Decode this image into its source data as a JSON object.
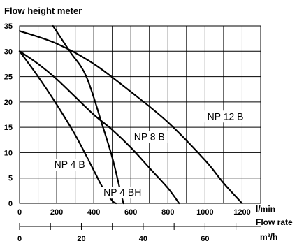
{
  "chart_data": {
    "type": "line",
    "title": "Flow height meter",
    "ylabel": "",
    "xlabel": "",
    "x_unit_label": "l/min",
    "x2_label": "Flow rate",
    "x2_unit": "m³/h",
    "xlim": [
      0,
      1300
    ],
    "ylim": [
      0,
      35
    ],
    "x2lim": [
      0,
      78
    ],
    "grid": true,
    "x_ticks": [
      "0",
      "200",
      "400",
      "600",
      "800",
      "1000",
      "1200"
    ],
    "x_tick_values": [
      0,
      200,
      400,
      600,
      800,
      1000,
      1200
    ],
    "y_ticks": [
      "0",
      "5",
      "10",
      "15",
      "20",
      "25",
      "30",
      "35"
    ],
    "y_tick_values": [
      0,
      5,
      10,
      15,
      20,
      25,
      30,
      35
    ],
    "x2_ticks": [
      "0",
      "20",
      "40",
      "60"
    ],
    "x2_tick_values": [
      0,
      20,
      40,
      60
    ],
    "series": [
      {
        "name": "NP 4 B",
        "x": [
          0,
          100,
          200,
          300,
          400,
          450,
          500,
          520
        ],
        "y": [
          30,
          25,
          19.5,
          13.5,
          6.5,
          3,
          0.5,
          0
        ]
      },
      {
        "name": "NP 4 BH",
        "x": [
          180,
          270,
          360,
          450,
          500,
          540,
          560
        ],
        "y": [
          35,
          30,
          25,
          15,
          9,
          3,
          0
        ]
      },
      {
        "name": "NP 8 B",
        "x": [
          0,
          100,
          200,
          300,
          400,
          500,
          600,
          700,
          800,
          860
        ],
        "y": [
          30,
          27.5,
          24.5,
          21,
          17.5,
          14.5,
          11,
          7,
          3,
          0
        ]
      },
      {
        "name": "NP 12 B",
        "x": [
          0,
          200,
          400,
          600,
          800,
          1000,
          1100,
          1200
        ],
        "y": [
          34,
          31.5,
          27.5,
          22,
          16,
          8.5,
          4,
          0
        ]
      }
    ],
    "labels": [
      {
        "text": "NP 12 B",
        "x": 1110,
        "y": 16.5
      },
      {
        "text": "NP 8 B",
        "x": 700,
        "y": 12.5
      },
      {
        "text": "NP 4 B",
        "x": 270,
        "y": 7
      },
      {
        "text": "NP 4 BH",
        "x": 555,
        "y": 1.5
      }
    ],
    "line_color": "#000000",
    "grid_color": "#000000"
  }
}
